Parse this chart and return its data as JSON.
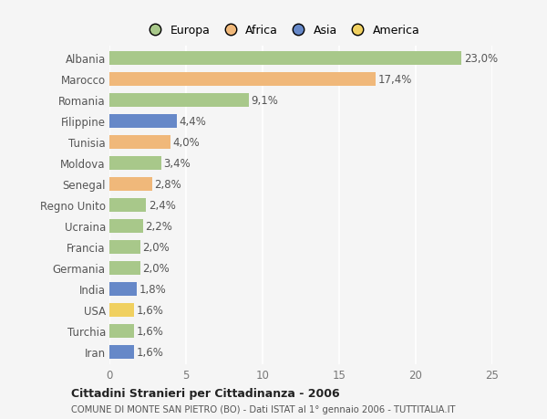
{
  "categories": [
    "Albania",
    "Marocco",
    "Romania",
    "Filippine",
    "Tunisia",
    "Moldova",
    "Senegal",
    "Regno Unito",
    "Ucraina",
    "Francia",
    "Germania",
    "India",
    "USA",
    "Turchia",
    "Iran"
  ],
  "values": [
    23.0,
    17.4,
    9.1,
    4.4,
    4.0,
    3.4,
    2.8,
    2.4,
    2.2,
    2.0,
    2.0,
    1.8,
    1.6,
    1.6,
    1.6
  ],
  "labels": [
    "23,0%",
    "17,4%",
    "9,1%",
    "4,4%",
    "4,0%",
    "3,4%",
    "2,8%",
    "2,4%",
    "2,2%",
    "2,0%",
    "2,0%",
    "1,8%",
    "1,6%",
    "1,6%",
    "1,6%"
  ],
  "continents": [
    "Europa",
    "Africa",
    "Europa",
    "Asia",
    "Africa",
    "Europa",
    "Africa",
    "Europa",
    "Europa",
    "Europa",
    "Europa",
    "Asia",
    "America",
    "Europa",
    "Asia"
  ],
  "colors": {
    "Europa": "#a8c88a",
    "Africa": "#f0b87a",
    "Asia": "#6688c8",
    "America": "#f0d060"
  },
  "xlim": [
    0,
    25
  ],
  "xticks": [
    0,
    5,
    10,
    15,
    20,
    25
  ],
  "title": "Cittadini Stranieri per Cittadinanza - 2006",
  "subtitle": "COMUNE DI MONTE SAN PIETRO (BO) - Dati ISTAT al 1° gennaio 2006 - TUTTITALIA.IT",
  "background_color": "#f5f5f5",
  "plot_background": "#f5f5f5",
  "grid_color": "#ffffff",
  "label_fontsize": 8.5,
  "bar_height": 0.65,
  "legend_order": [
    "Europa",
    "Africa",
    "Asia",
    "America"
  ]
}
